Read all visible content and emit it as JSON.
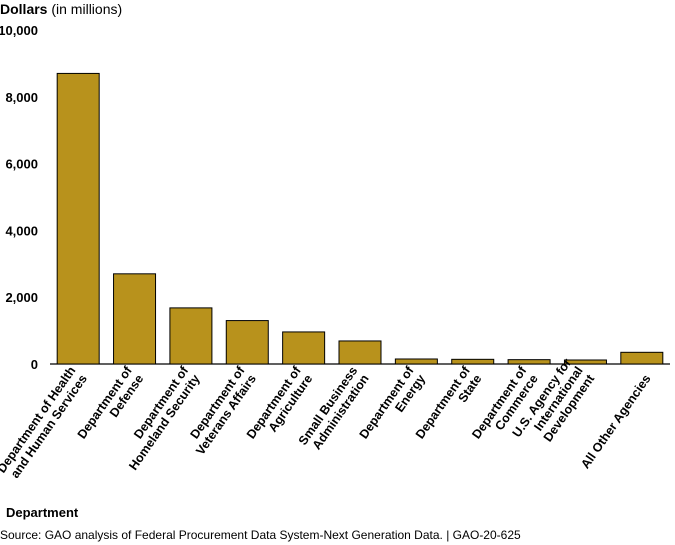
{
  "chart_data": {
    "type": "bar",
    "ylabel": "Dollars",
    "ylabel_suffix": "(in millions)",
    "xlabel": "Department",
    "ylim": [
      0,
      10000
    ],
    "yticks": [
      "0",
      "2,000",
      "4,000",
      "6,000",
      "8,000",
      "10,000"
    ],
    "ytick_values": [
      0,
      2000,
      4000,
      6000,
      8000,
      10000
    ],
    "categories": [
      [
        "Department of Health",
        "and Human Services"
      ],
      [
        "Department of",
        "Defense"
      ],
      [
        "Department of",
        "Homeland Security"
      ],
      [
        "Department of",
        "Veterans Affairs"
      ],
      [
        "Department of",
        "Agriculture"
      ],
      [
        "Small Business",
        "Administration"
      ],
      [
        "Department of",
        "Energy"
      ],
      [
        "Department of",
        "State"
      ],
      [
        "Department of",
        "Commerce"
      ],
      [
        "U.S. Agency for",
        "International",
        "Development"
      ],
      [
        "All Other Agencies"
      ]
    ],
    "values": [
      8700,
      2700,
      1680,
      1300,
      960,
      690,
      150,
      140,
      130,
      120,
      350
    ],
    "bar_color": "#b8921c",
    "grid": false
  },
  "source": "Source: GAO analysis of Federal Procurement Data System-Next Generation Data.  |  GAO-20-625"
}
